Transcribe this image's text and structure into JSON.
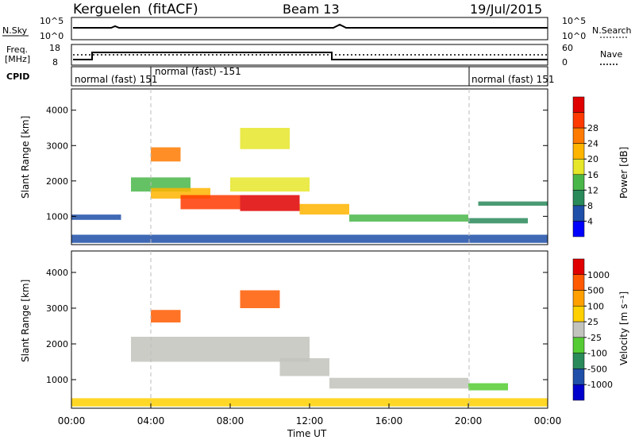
{
  "header": {
    "station": "Kerguelen",
    "fit": "(fitACF)",
    "beam": "Beam 13",
    "date": "19/Jul/2015"
  },
  "strips": {
    "nsky_label": "N.Sky",
    "nsky_ticks": [
      "10^5",
      "10^0"
    ],
    "nsearch_label": "N.Search",
    "nsearch_ticks": [
      "10^5",
      "10^0"
    ],
    "freq_label_1": "Freq.",
    "freq_label_2": "[MHz]",
    "freq_ticks": [
      "18",
      "8"
    ],
    "nave_label": "Nave",
    "nave_ticks": [
      "60",
      "0"
    ],
    "cpid_label": "CPID",
    "cpid_segments": [
      {
        "label": "normal (fast) 151",
        "start_hour": 0
      },
      {
        "label": "normal (fast) -151",
        "start_hour": 4
      },
      {
        "label": "normal (fast) 151",
        "start_hour": 20
      }
    ]
  },
  "colors": {
    "power": [
      "#0000ff",
      "#1f4fa8",
      "#2a8a5a",
      "#49b649",
      "#e6e62a",
      "#ffb400",
      "#ff7a00",
      "#ff3a00",
      "#e00000"
    ],
    "velocity": [
      "#e00000",
      "#ff5a00",
      "#ffa000",
      "#ffd000",
      "#c3c3bd",
      "#55cc33",
      "#2a8a5a",
      "#1f4fa8",
      "#0000cc"
    ]
  },
  "chart_data": [
    {
      "type": "heatmap",
      "panel": "power",
      "ylabel": "Slant Range [km]",
      "y_ticks": [
        1000,
        2000,
        3000,
        4000
      ],
      "ylim": [
        200,
        4600
      ],
      "colorbar_label": "Power [dB]",
      "colorbar_ticks": [
        "4",
        "8",
        "12",
        "16",
        "20",
        "24",
        "28"
      ],
      "bands": [
        {
          "t0": 0.0,
          "t1": 24.0,
          "r0": 250,
          "r1": 480,
          "level": 1
        },
        {
          "t0": 0.0,
          "t1": 2.5,
          "r0": 900,
          "r1": 1050,
          "level": 1
        },
        {
          "t0": 3.0,
          "t1": 6.0,
          "r0": 1700,
          "r1": 2100,
          "level": 3
        },
        {
          "t0": 4.0,
          "t1": 7.0,
          "r0": 1500,
          "r1": 1800,
          "level": 5
        },
        {
          "t0": 5.5,
          "t1": 8.5,
          "r0": 1200,
          "r1": 1600,
          "level": 7
        },
        {
          "t0": 8.5,
          "t1": 11.5,
          "r0": 1150,
          "r1": 1600,
          "level": 8
        },
        {
          "t0": 8.0,
          "t1": 12.0,
          "r0": 1700,
          "r1": 2100,
          "level": 4
        },
        {
          "t0": 4.0,
          "t1": 5.5,
          "r0": 2550,
          "r1": 2950,
          "level": 6
        },
        {
          "t0": 8.5,
          "t1": 11.0,
          "r0": 2900,
          "r1": 3500,
          "level": 4
        },
        {
          "t0": 11.5,
          "t1": 14.0,
          "r0": 1050,
          "r1": 1350,
          "level": 5
        },
        {
          "t0": 14.0,
          "t1": 20.0,
          "r0": 850,
          "r1": 1050,
          "level": 3
        },
        {
          "t0": 20.0,
          "t1": 23.0,
          "r0": 800,
          "r1": 950,
          "level": 2
        },
        {
          "t0": 20.5,
          "t1": 24.0,
          "r0": 1300,
          "r1": 1420,
          "level": 2
        }
      ]
    },
    {
      "type": "heatmap",
      "panel": "velocity",
      "ylabel": "Slant Range [km]",
      "y_ticks": [
        1000,
        2000,
        3000,
        4000
      ],
      "ylim": [
        200,
        4600
      ],
      "colorbar_label": "Velocity [m s⁻¹]",
      "colorbar_ticks": [
        "1000",
        "500",
        "100",
        "25",
        "-25",
        "-100",
        "-500",
        "-1000"
      ],
      "bands": [
        {
          "t0": 0.0,
          "t1": 24.0,
          "r0": 250,
          "r1": 480,
          "level": 3
        },
        {
          "t0": 3.0,
          "t1": 12.0,
          "r0": 1500,
          "r1": 2200,
          "level": 4
        },
        {
          "t0": 4.0,
          "t1": 5.5,
          "r0": 2600,
          "r1": 2950,
          "level": 1
        },
        {
          "t0": 8.5,
          "t1": 10.5,
          "r0": 3000,
          "r1": 3500,
          "level": 1
        },
        {
          "t0": 10.5,
          "t1": 13.0,
          "r0": 1100,
          "r1": 1600,
          "level": 4
        },
        {
          "t0": 13.0,
          "t1": 20.0,
          "r0": 750,
          "r1": 1050,
          "level": 4
        },
        {
          "t0": 20.0,
          "t1": 22.0,
          "r0": 700,
          "r1": 900,
          "level": 5
        }
      ]
    }
  ],
  "xaxis": {
    "label": "Time UT",
    "ticks": [
      "00:00",
      "04:00",
      "08:00",
      "12:00",
      "16:00",
      "20:00",
      "00:00"
    ]
  }
}
